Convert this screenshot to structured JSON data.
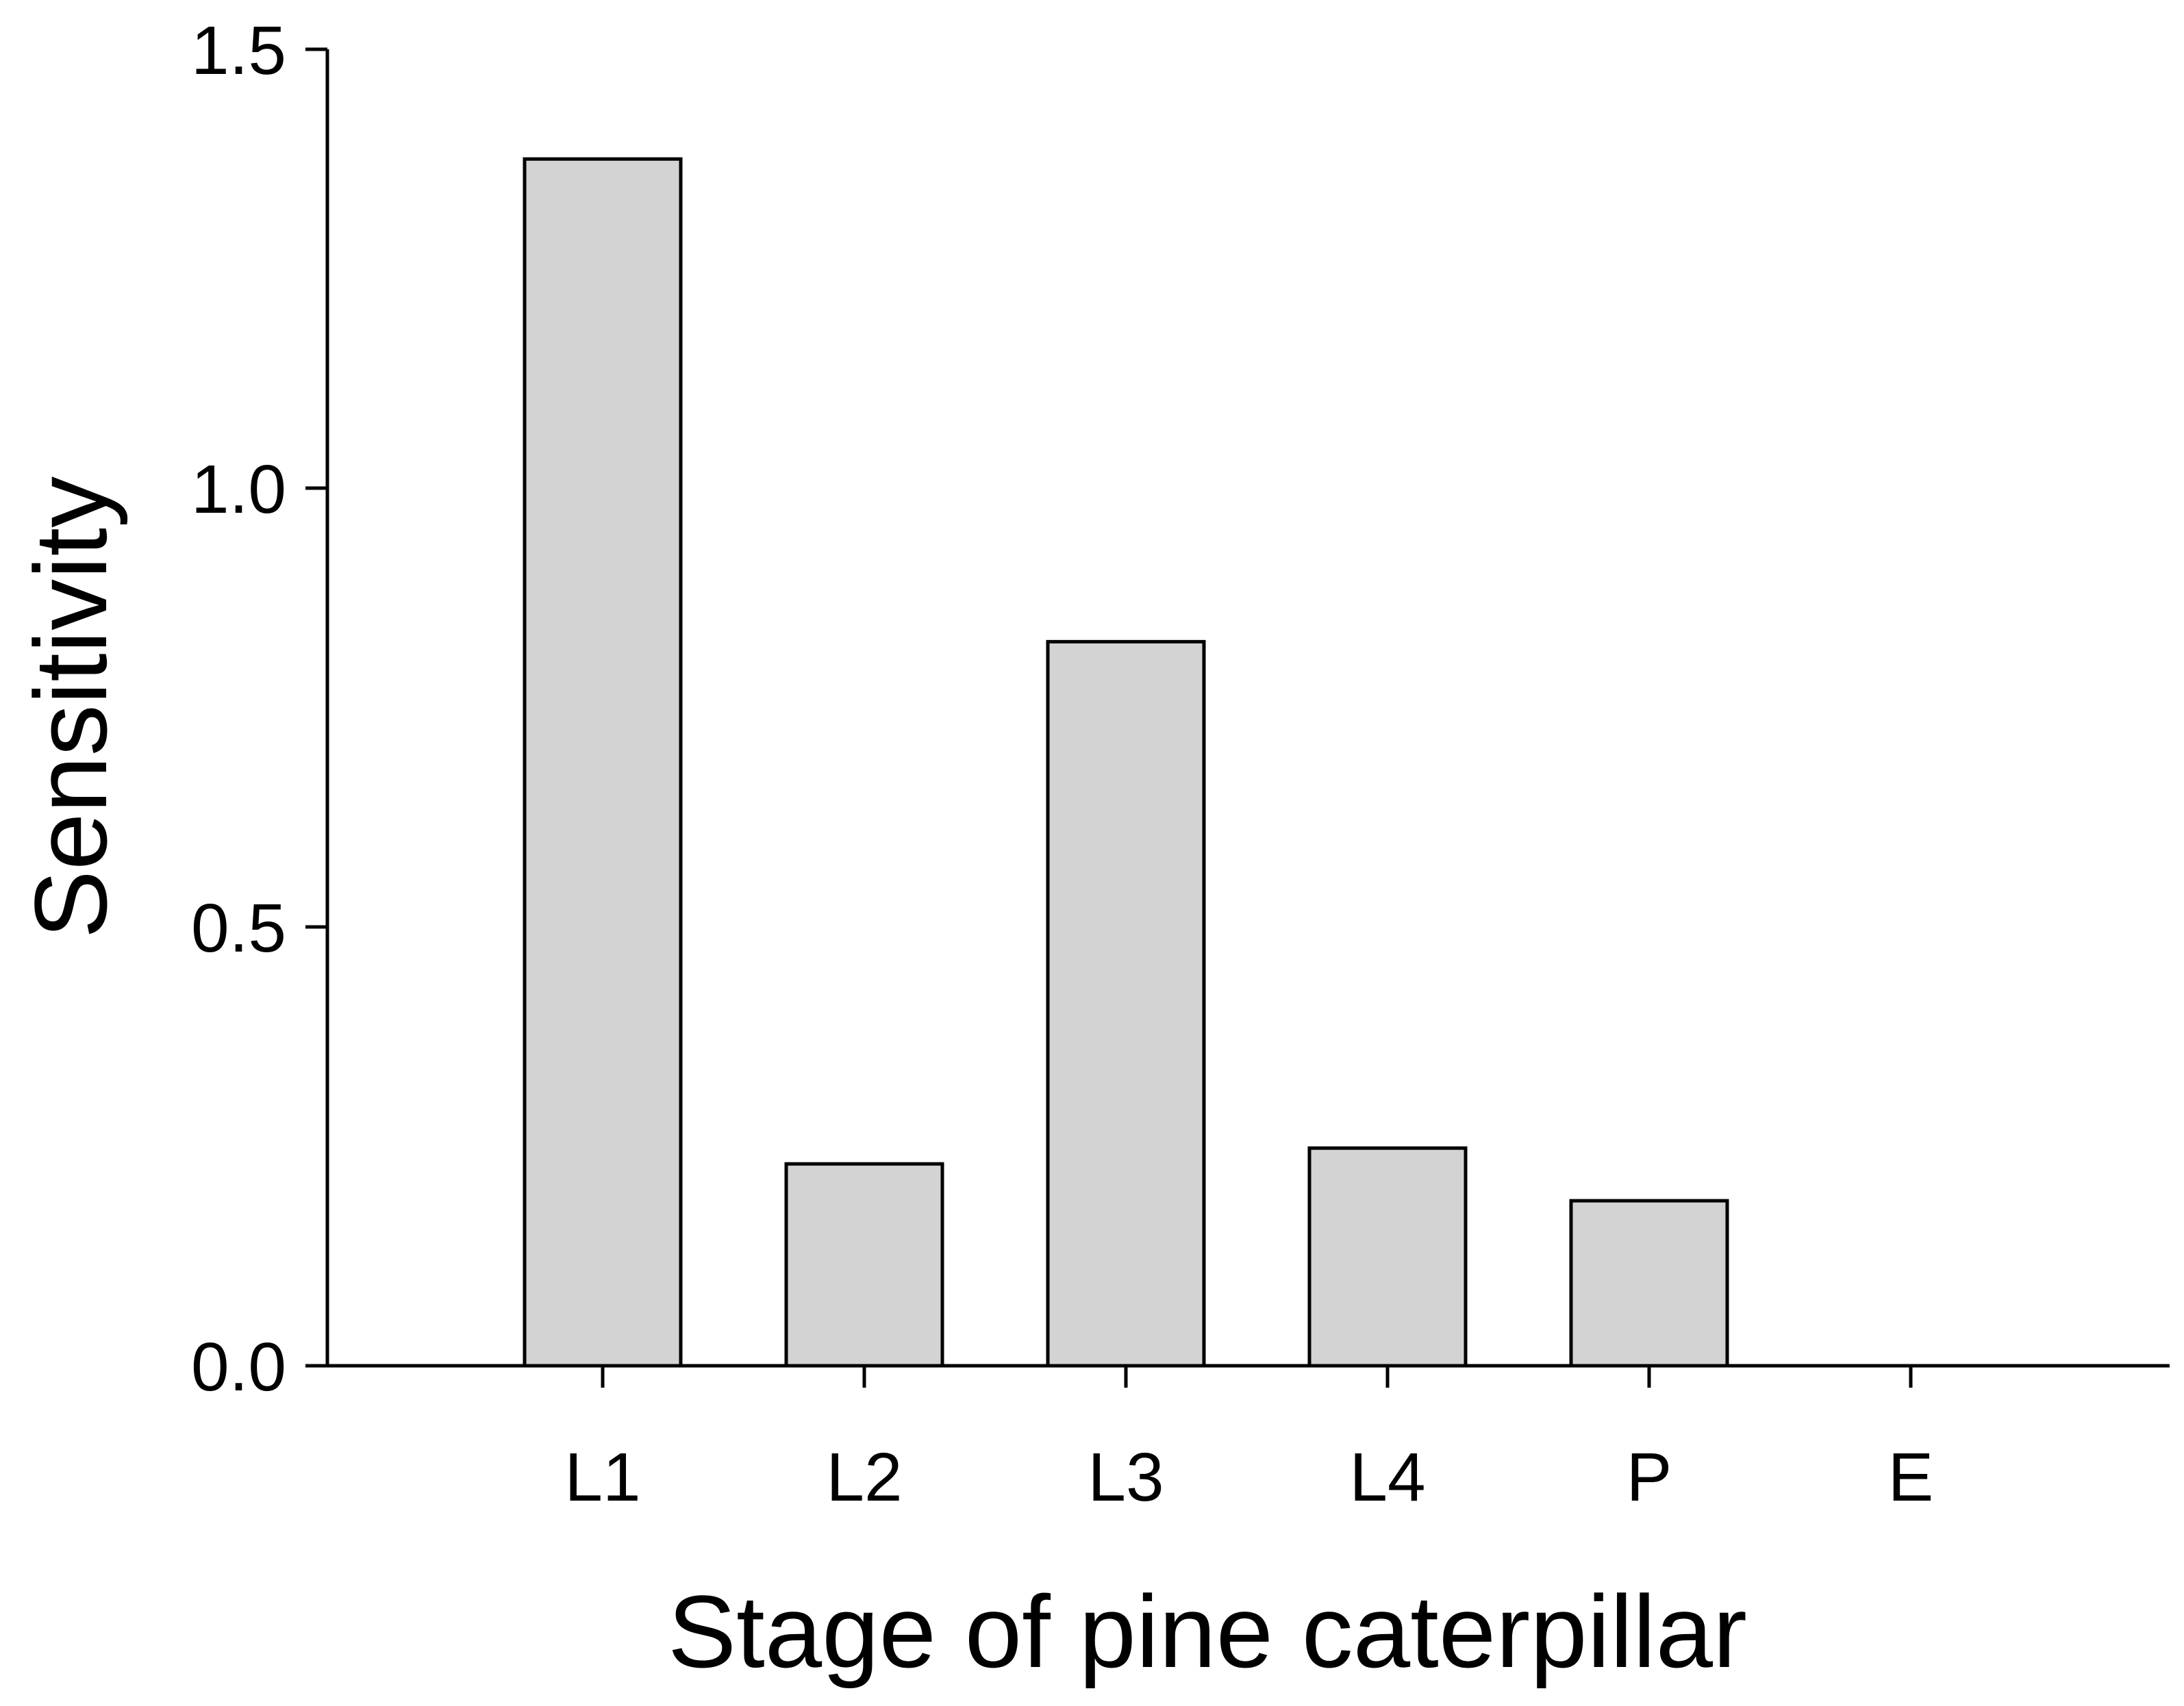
{
  "chart_data": {
    "type": "bar",
    "categories": [
      "L1",
      "L2",
      "L3",
      "L4",
      "P",
      "E"
    ],
    "values": [
      1.375,
      0.23,
      0.825,
      0.248,
      0.188,
      0.0
    ],
    "xlabel": "Stage of pine caterpillar",
    "ylabel": "Sensitivity",
    "ylim": [
      0,
      1.5
    ],
    "yticks": [
      "0.0",
      "0.5",
      "1.0",
      "1.5"
    ],
    "ytick_values": [
      0,
      0.5,
      1.0,
      1.5
    ],
    "grid": false,
    "colors": {
      "bar_fill": "#d3d3d3",
      "bar_stroke": "#000000"
    }
  }
}
